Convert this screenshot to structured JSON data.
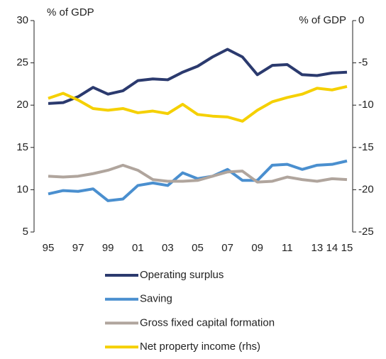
{
  "chart_data": {
    "type": "line",
    "ylabel": "% of GDP",
    "y2label": "% of GDP",
    "categories": [
      "95",
      null,
      "97",
      null,
      "99",
      null,
      "01",
      null,
      "03",
      null,
      "05",
      null,
      "07",
      null,
      "09",
      null,
      "11",
      null,
      "13",
      "14",
      "15"
    ],
    "series": [
      {
        "name": "Operating surplus",
        "color": "#2b3a6e",
        "values": [
          20.2,
          20.3,
          21.0,
          22.1,
          21.3,
          21.7,
          22.9,
          23.1,
          23.0,
          23.9,
          24.6,
          25.7,
          26.6,
          25.7,
          23.6,
          24.7,
          24.8,
          23.6,
          23.5,
          23.8,
          23.9
        ]
      },
      {
        "name": "Saving",
        "color": "#4a8fcf",
        "values": [
          9.5,
          9.9,
          9.8,
          10.1,
          8.7,
          8.9,
          10.5,
          10.8,
          10.5,
          12.0,
          11.3,
          11.6,
          12.4,
          11.1,
          11.1,
          12.9,
          13.0,
          12.4,
          12.9,
          13.0,
          13.4
        ]
      },
      {
        "name": "Gross fixed capital formation",
        "color": "#b0a59d",
        "values": [
          11.6,
          11.5,
          11.6,
          11.9,
          12.3,
          12.9,
          12.3,
          11.2,
          11.0,
          11.0,
          11.1,
          11.6,
          12.1,
          12.2,
          10.9,
          11.0,
          11.5,
          11.2,
          11.0,
          11.3,
          11.2
        ]
      },
      {
        "name": "Net property income (rhs)",
        "color": "#f5d000",
        "axis": "y2",
        "values": [
          -9.2,
          -8.6,
          -9.4,
          -10.4,
          -10.6,
          -10.4,
          -10.9,
          -10.7,
          -11.0,
          -9.9,
          -11.1,
          -11.3,
          -11.4,
          -11.9,
          -10.6,
          -9.6,
          -9.1,
          -8.7,
          -8.0,
          -8.2,
          -7.8
        ]
      }
    ],
    "ylim": [
      5,
      30
    ],
    "yticks": [
      5,
      10,
      15,
      20,
      25,
      30
    ],
    "y2lim": [
      -25,
      0
    ],
    "y2ticks": [
      -25,
      -20,
      -15,
      -10,
      -5,
      0
    ],
    "legend": "bottom"
  }
}
